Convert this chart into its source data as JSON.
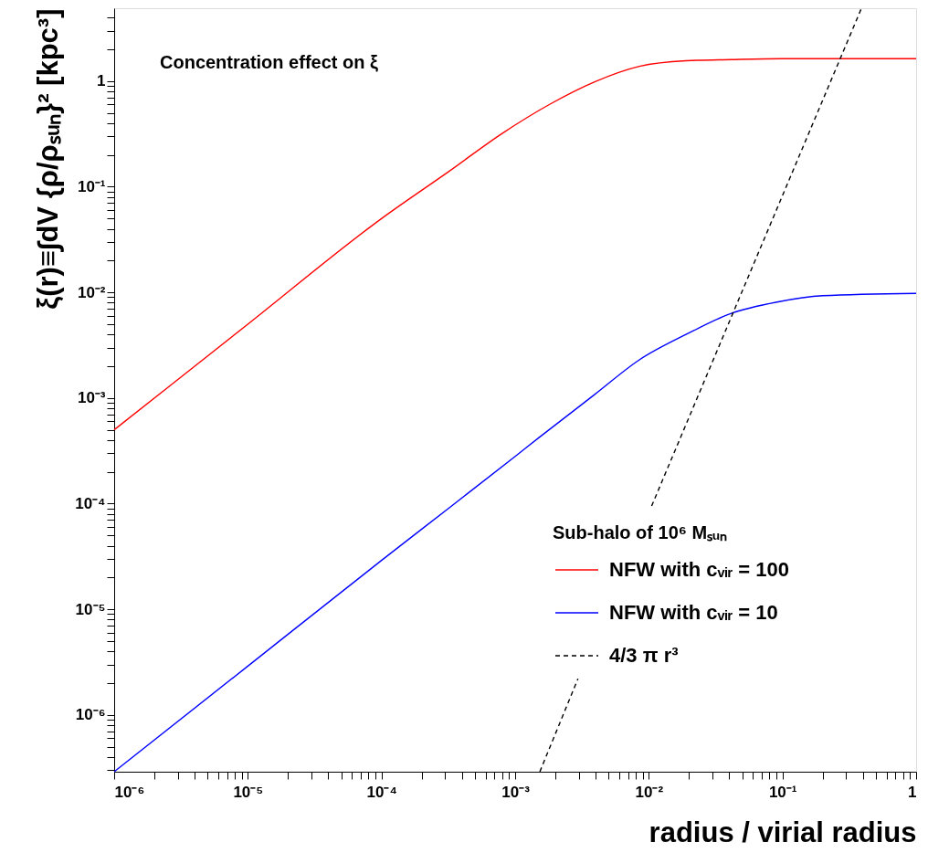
{
  "chart_data": {
    "type": "line",
    "annotations": [
      "Concentration effect on ξ"
    ],
    "xlabel": "radius / virial radius",
    "ylabel": "ξ(r)≡∫dV {ρ/ρₛᵤₙ}² [kpc³]",
    "legend_title": "Sub-halo of 10⁶ Mₛᵤₙ",
    "log": "xy",
    "grid": false,
    "legend": "bottom right",
    "marker": "none",
    "xlim": [
      1e-06,
      1
    ],
    "ylim": [
      2.9e-07,
      4.9
    ],
    "xticks": [
      {
        "value": 1e-06,
        "label": "10⁻⁶"
      },
      {
        "value": 2e-06,
        "label": null
      },
      {
        "value": 3e-06,
        "label": null
      },
      {
        "value": 4e-06,
        "label": null
      },
      {
        "value": 5e-06,
        "label": null
      },
      {
        "value": 6e-06,
        "label": null
      },
      {
        "value": 7e-06,
        "label": null
      },
      {
        "value": 8e-06,
        "label": null
      },
      {
        "value": 9e-06,
        "label": null
      },
      {
        "value": 1e-05,
        "label": "10⁻⁵"
      },
      {
        "value": 2e-05,
        "label": null
      },
      {
        "value": 3e-05,
        "label": null
      },
      {
        "value": 4e-05,
        "label": null
      },
      {
        "value": 5e-05,
        "label": null
      },
      {
        "value": 6e-05,
        "label": null
      },
      {
        "value": 7e-05,
        "label": null
      },
      {
        "value": 8e-05,
        "label": null
      },
      {
        "value": 9e-05,
        "label": null
      },
      {
        "value": 0.0001,
        "label": "10⁻⁴"
      },
      {
        "value": 0.0002,
        "label": null
      },
      {
        "value": 0.0003,
        "label": null
      },
      {
        "value": 0.0004,
        "label": null
      },
      {
        "value": 0.0005,
        "label": null
      },
      {
        "value": 0.0006,
        "label": null
      },
      {
        "value": 0.0007,
        "label": null
      },
      {
        "value": 0.0008,
        "label": null
      },
      {
        "value": 0.0009,
        "label": null
      },
      {
        "value": 0.001,
        "label": "10⁻³"
      },
      {
        "value": 0.002,
        "label": null
      },
      {
        "value": 0.003,
        "label": null
      },
      {
        "value": 0.004,
        "label": null
      },
      {
        "value": 0.005,
        "label": null
      },
      {
        "value": 0.006,
        "label": null
      },
      {
        "value": 0.007,
        "label": null
      },
      {
        "value": 0.008,
        "label": null
      },
      {
        "value": 0.009,
        "label": null
      },
      {
        "value": 0.01,
        "label": "10⁻²"
      },
      {
        "value": 0.02,
        "label": null
      },
      {
        "value": 0.03,
        "label": null
      },
      {
        "value": 0.04,
        "label": null
      },
      {
        "value": 0.05,
        "label": null
      },
      {
        "value": 0.06,
        "label": null
      },
      {
        "value": 0.07,
        "label": null
      },
      {
        "value": 0.08,
        "label": null
      },
      {
        "value": 0.09,
        "label": null
      },
      {
        "value": 0.1,
        "label": "10⁻¹"
      },
      {
        "value": 0.2,
        "label": null
      },
      {
        "value": 0.3,
        "label": null
      },
      {
        "value": 0.4,
        "label": null
      },
      {
        "value": 0.5,
        "label": null
      },
      {
        "value": 0.6,
        "label": null
      },
      {
        "value": 0.7,
        "label": null
      },
      {
        "value": 0.8,
        "label": null
      },
      {
        "value": 0.9,
        "label": null
      },
      1
    ],
    "yticks": [
      {
        "value": 3e-07,
        "label": null
      },
      {
        "value": 4e-07,
        "label": null
      },
      {
        "value": 5e-07,
        "label": null
      },
      {
        "value": 6e-07,
        "label": null
      },
      {
        "value": 7e-07,
        "label": null
      },
      {
        "value": 8e-07,
        "label": null
      },
      {
        "value": 9e-07,
        "label": null
      },
      {
        "value": 1e-06,
        "label": "10⁻⁶"
      },
      {
        "value": 2e-06,
        "label": null
      },
      {
        "value": 3e-06,
        "label": null
      },
      {
        "value": 4e-06,
        "label": null
      },
      {
        "value": 5e-06,
        "label": null
      },
      {
        "value": 6e-06,
        "label": null
      },
      {
        "value": 7e-06,
        "label": null
      },
      {
        "value": 8e-06,
        "label": null
      },
      {
        "value": 9e-06,
        "label": null
      },
      {
        "value": 1e-05,
        "label": "10⁻⁵"
      },
      {
        "value": 2e-05,
        "label": null
      },
      {
        "value": 3e-05,
        "label": null
      },
      {
        "value": 4e-05,
        "label": null
      },
      {
        "value": 5e-05,
        "label": null
      },
      {
        "value": 6e-05,
        "label": null
      },
      {
        "value": 7e-05,
        "label": null
      },
      {
        "value": 8e-05,
        "label": null
      },
      {
        "value": 9e-05,
        "label": null
      },
      {
        "value": 0.0001,
        "label": "10⁻⁴"
      },
      {
        "value": 0.0002,
        "label": null
      },
      {
        "value": 0.0003,
        "label": null
      },
      {
        "value": 0.0004,
        "label": null
      },
      {
        "value": 0.0005,
        "label": null
      },
      {
        "value": 0.0006,
        "label": null
      },
      {
        "value": 0.0007,
        "label": null
      },
      {
        "value": 0.0008,
        "label": null
      },
      {
        "value": 0.0009,
        "label": null
      },
      {
        "value": 0.001,
        "label": "10⁻³"
      },
      {
        "value": 0.002,
        "label": null
      },
      {
        "value": 0.003,
        "label": null
      },
      {
        "value": 0.004,
        "label": null
      },
      {
        "value": 0.005,
        "label": null
      },
      {
        "value": 0.006,
        "label": null
      },
      {
        "value": 0.007,
        "label": null
      },
      {
        "value": 0.008,
        "label": null
      },
      {
        "value": 0.009,
        "label": null
      },
      {
        "value": 0.01,
        "label": "10⁻²"
      },
      {
        "value": 0.02,
        "label": null
      },
      {
        "value": 0.03,
        "label": null
      },
      {
        "value": 0.04,
        "label": null
      },
      {
        "value": 0.05,
        "label": null
      },
      {
        "value": 0.06,
        "label": null
      },
      {
        "value": 0.07,
        "label": null
      },
      {
        "value": 0.08,
        "label": null
      },
      {
        "value": 0.09,
        "label": null
      },
      {
        "value": 0.1,
        "label": "10⁻¹"
      },
      {
        "value": 0.2,
        "label": null
      },
      {
        "value": 0.3,
        "label": null
      },
      {
        "value": 0.4,
        "label": null
      },
      {
        "value": 0.5,
        "label": null
      },
      {
        "value": 0.6,
        "label": null
      },
      {
        "value": 0.7,
        "label": null
      },
      {
        "value": 0.8,
        "label": null
      },
      {
        "value": 0.9,
        "label": null
      },
      1,
      {
        "value": 2,
        "label": null
      },
      {
        "value": 3,
        "label": null
      },
      {
        "value": 4,
        "label": null
      }
    ],
    "series": [
      {
        "name": "NFW with cᵥᵢᵣ = 100",
        "color": "#ff0000",
        "line_style": "solid",
        "x": [
          1e-06,
          1e-05,
          0.0001,
          0.00032,
          0.0008,
          0.0018,
          0.0039,
          0.0085,
          0.019,
          0.041,
          0.1,
          1
        ],
        "values": [
          0.0005,
          0.005,
          0.05,
          0.14,
          0.32,
          0.6,
          0.98,
          1.38,
          1.56,
          1.6,
          1.63,
          1.63
        ]
      },
      {
        "name": "NFW with cᵥᵢᵣ = 10",
        "color": "#0000ff",
        "line_style": "solid",
        "x": [
          1e-06,
          1e-05,
          0.0001,
          0.00032,
          0.001,
          0.0015,
          0.0039,
          0.0085,
          0.019,
          0.041,
          0.091,
          0.2,
          1
        ],
        "values": [
          2.9e-07,
          2.9e-06,
          2.9e-05,
          9.1e-05,
          0.00028,
          0.00042,
          0.00107,
          0.0023,
          0.004,
          0.0063,
          0.0081,
          0.0093,
          0.0098
        ]
      },
      {
        "name": "4/3 π r³",
        "color": "#000000",
        "line_style": "dashed",
        "x": [
          0.00153,
          0.00295,
          0.005,
          0.0105,
          0.39
        ],
        "values": [
          2.9e-07,
          2.2e-06,
          null,
          9.5e-05,
          4.9
        ]
      }
    ]
  }
}
